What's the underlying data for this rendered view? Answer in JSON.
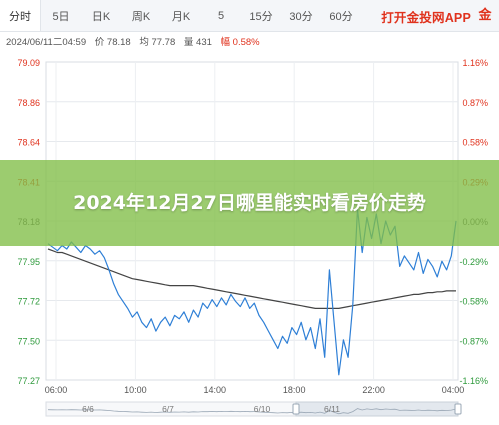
{
  "tabs": [
    {
      "label": "分时",
      "active": true
    },
    {
      "label": "5日",
      "active": false
    },
    {
      "label": "日K",
      "active": false
    },
    {
      "label": "周K",
      "active": false
    },
    {
      "label": "月K",
      "active": false
    },
    {
      "label": "5",
      "active": false
    },
    {
      "label": "15分",
      "active": false
    },
    {
      "label": "30分",
      "active": false
    },
    {
      "label": "60分",
      "active": false
    }
  ],
  "brand": {
    "text": "打开金投网APP",
    "mark": "金"
  },
  "info": {
    "datetime": "2024/06/11二04:59",
    "price": "价 78.18",
    "avg": "均 77.78",
    "volume": "量 431",
    "change": "幅 0.58%"
  },
  "headline": "2024年12月27日哪里能实时看房价走势",
  "colors": {
    "price_line": "#2e7fd6",
    "avg_line": "#444444",
    "up": "#e0321d",
    "down": "#2e9a3c",
    "overlay": "#80be46"
  },
  "chart_data": {
    "type": "line",
    "y_left_ticks": [
      "79.09",
      "78.86",
      "78.64",
      "78.41",
      "78.18",
      "77.95",
      "77.72",
      "77.50",
      "77.27"
    ],
    "y_right_ticks": [
      "1.16%",
      "0.87%",
      "0.58%",
      "0.29%",
      "0.00%",
      "-0.29%",
      "-0.58%",
      "-0.87%",
      "-1.16%"
    ],
    "ylim": [
      77.27,
      79.09
    ],
    "x_ticks": [
      "06:00",
      "10:00",
      "14:00",
      "18:00",
      "22:00",
      "04:00"
    ],
    "date_labels": [
      "6/6",
      "6/7",
      "6/10",
      "6/11"
    ],
    "series": [
      {
        "values": [
          78.05,
          78.03,
          78.01,
          78.04,
          78.02,
          78.06,
          78.03,
          78.0,
          78.04,
          78.02,
          77.99,
          78.01,
          77.97,
          77.9,
          77.82,
          77.76,
          77.72,
          77.68,
          77.63,
          77.66,
          77.6,
          77.57,
          77.62,
          77.55,
          77.6,
          77.63,
          77.58,
          77.64,
          77.62,
          77.66,
          77.6,
          77.67,
          77.63,
          77.71,
          77.68,
          77.73,
          77.69,
          77.74,
          77.7,
          77.76,
          77.72,
          77.69,
          77.74,
          77.68,
          77.71,
          77.64,
          77.6,
          77.55,
          77.5,
          77.45,
          77.52,
          77.48,
          77.57,
          77.53,
          77.6,
          77.5,
          77.57,
          77.45,
          77.62,
          77.4,
          77.9,
          77.6,
          77.3,
          77.5,
          77.4,
          77.7,
          78.25,
          78.0,
          78.2,
          78.08,
          78.22,
          78.05,
          78.18,
          78.1,
          78.15,
          77.92,
          77.98,
          77.94,
          77.9,
          78.0,
          77.88,
          77.96,
          77.92,
          77.86,
          77.95,
          77.9,
          77.98,
          78.18
        ],
        "label_note": "price"
      },
      {
        "values": [
          78.02,
          78.01,
          78.0,
          78.0,
          77.99,
          77.98,
          77.97,
          77.96,
          77.95,
          77.94,
          77.93,
          77.92,
          77.91,
          77.9,
          77.89,
          77.88,
          77.87,
          77.86,
          77.85,
          77.845,
          77.84,
          77.835,
          77.83,
          77.825,
          77.82,
          77.815,
          77.81,
          77.81,
          77.81,
          77.81,
          77.81,
          77.81,
          77.805,
          77.8,
          77.795,
          77.79,
          77.785,
          77.78,
          77.775,
          77.77,
          77.765,
          77.76,
          77.755,
          77.75,
          77.745,
          77.74,
          77.735,
          77.73,
          77.725,
          77.72,
          77.715,
          77.71,
          77.705,
          77.7,
          77.695,
          77.69,
          77.685,
          77.68,
          77.68,
          77.68,
          77.68,
          77.68,
          77.68,
          77.685,
          77.69,
          77.695,
          77.7,
          77.705,
          77.71,
          77.715,
          77.72,
          77.725,
          77.73,
          77.735,
          77.74,
          77.745,
          77.75,
          77.755,
          77.76,
          77.76,
          77.765,
          77.77,
          77.77,
          77.775,
          77.775,
          77.78,
          77.78,
          77.78
        ],
        "label_note": "average"
      }
    ]
  }
}
